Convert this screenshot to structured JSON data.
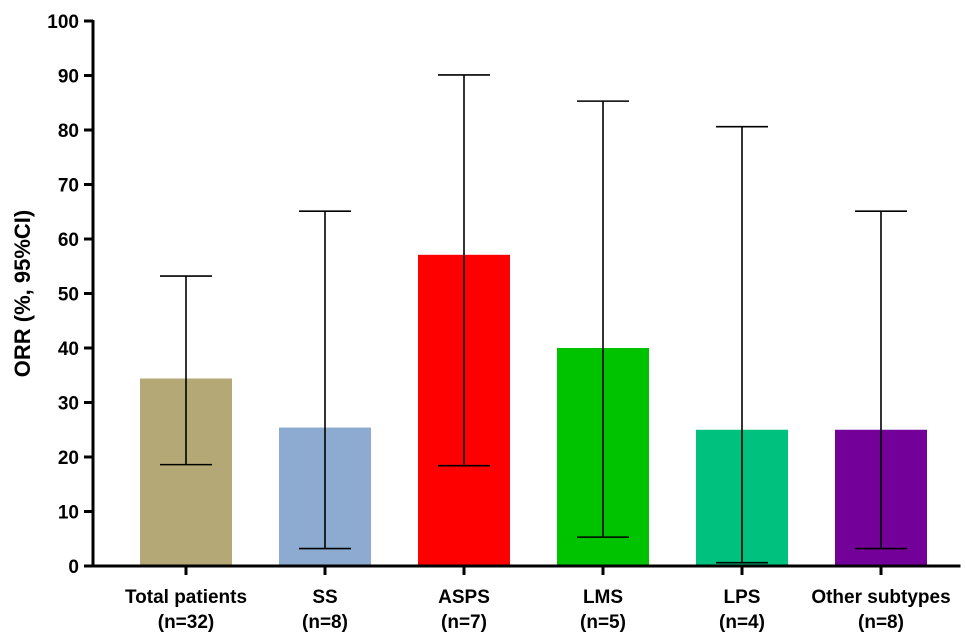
{
  "chart_data": {
    "type": "bar",
    "title": "",
    "xlabel": "",
    "ylabel": "ORR (%, 95%CI)",
    "ylim": [
      0,
      100
    ],
    "yticks": [
      0,
      10,
      20,
      30,
      40,
      50,
      60,
      70,
      80,
      90,
      100
    ],
    "grid": false,
    "categories": [
      {
        "name": "Total patients",
        "n": "(n=32)",
        "value": 34.4,
        "ci_low": 18.6,
        "ci_high": 53.2,
        "color": "#b4a876"
      },
      {
        "name": "SS",
        "n": "(n=8)",
        "value": 25.4,
        "ci_low": 3.2,
        "ci_high": 65.1,
        "color": "#8dabd0"
      },
      {
        "name": "ASPS",
        "n": "(n=7)",
        "value": 57.1,
        "ci_low": 18.4,
        "ci_high": 90.1,
        "color": "#fe0000"
      },
      {
        "name": "LMS",
        "n": "(n=5)",
        "value": 40.0,
        "ci_low": 5.3,
        "ci_high": 85.3,
        "color": "#00c300"
      },
      {
        "name": "LPS",
        "n": "(n=4)",
        "value": 25.0,
        "ci_low": 0.6,
        "ci_high": 80.6,
        "color": "#00c27f"
      },
      {
        "name": "Other subtypes",
        "n": "(n=8)",
        "value": 25.0,
        "ci_low": 3.2,
        "ci_high": 65.1,
        "color": "#720099"
      }
    ]
  }
}
